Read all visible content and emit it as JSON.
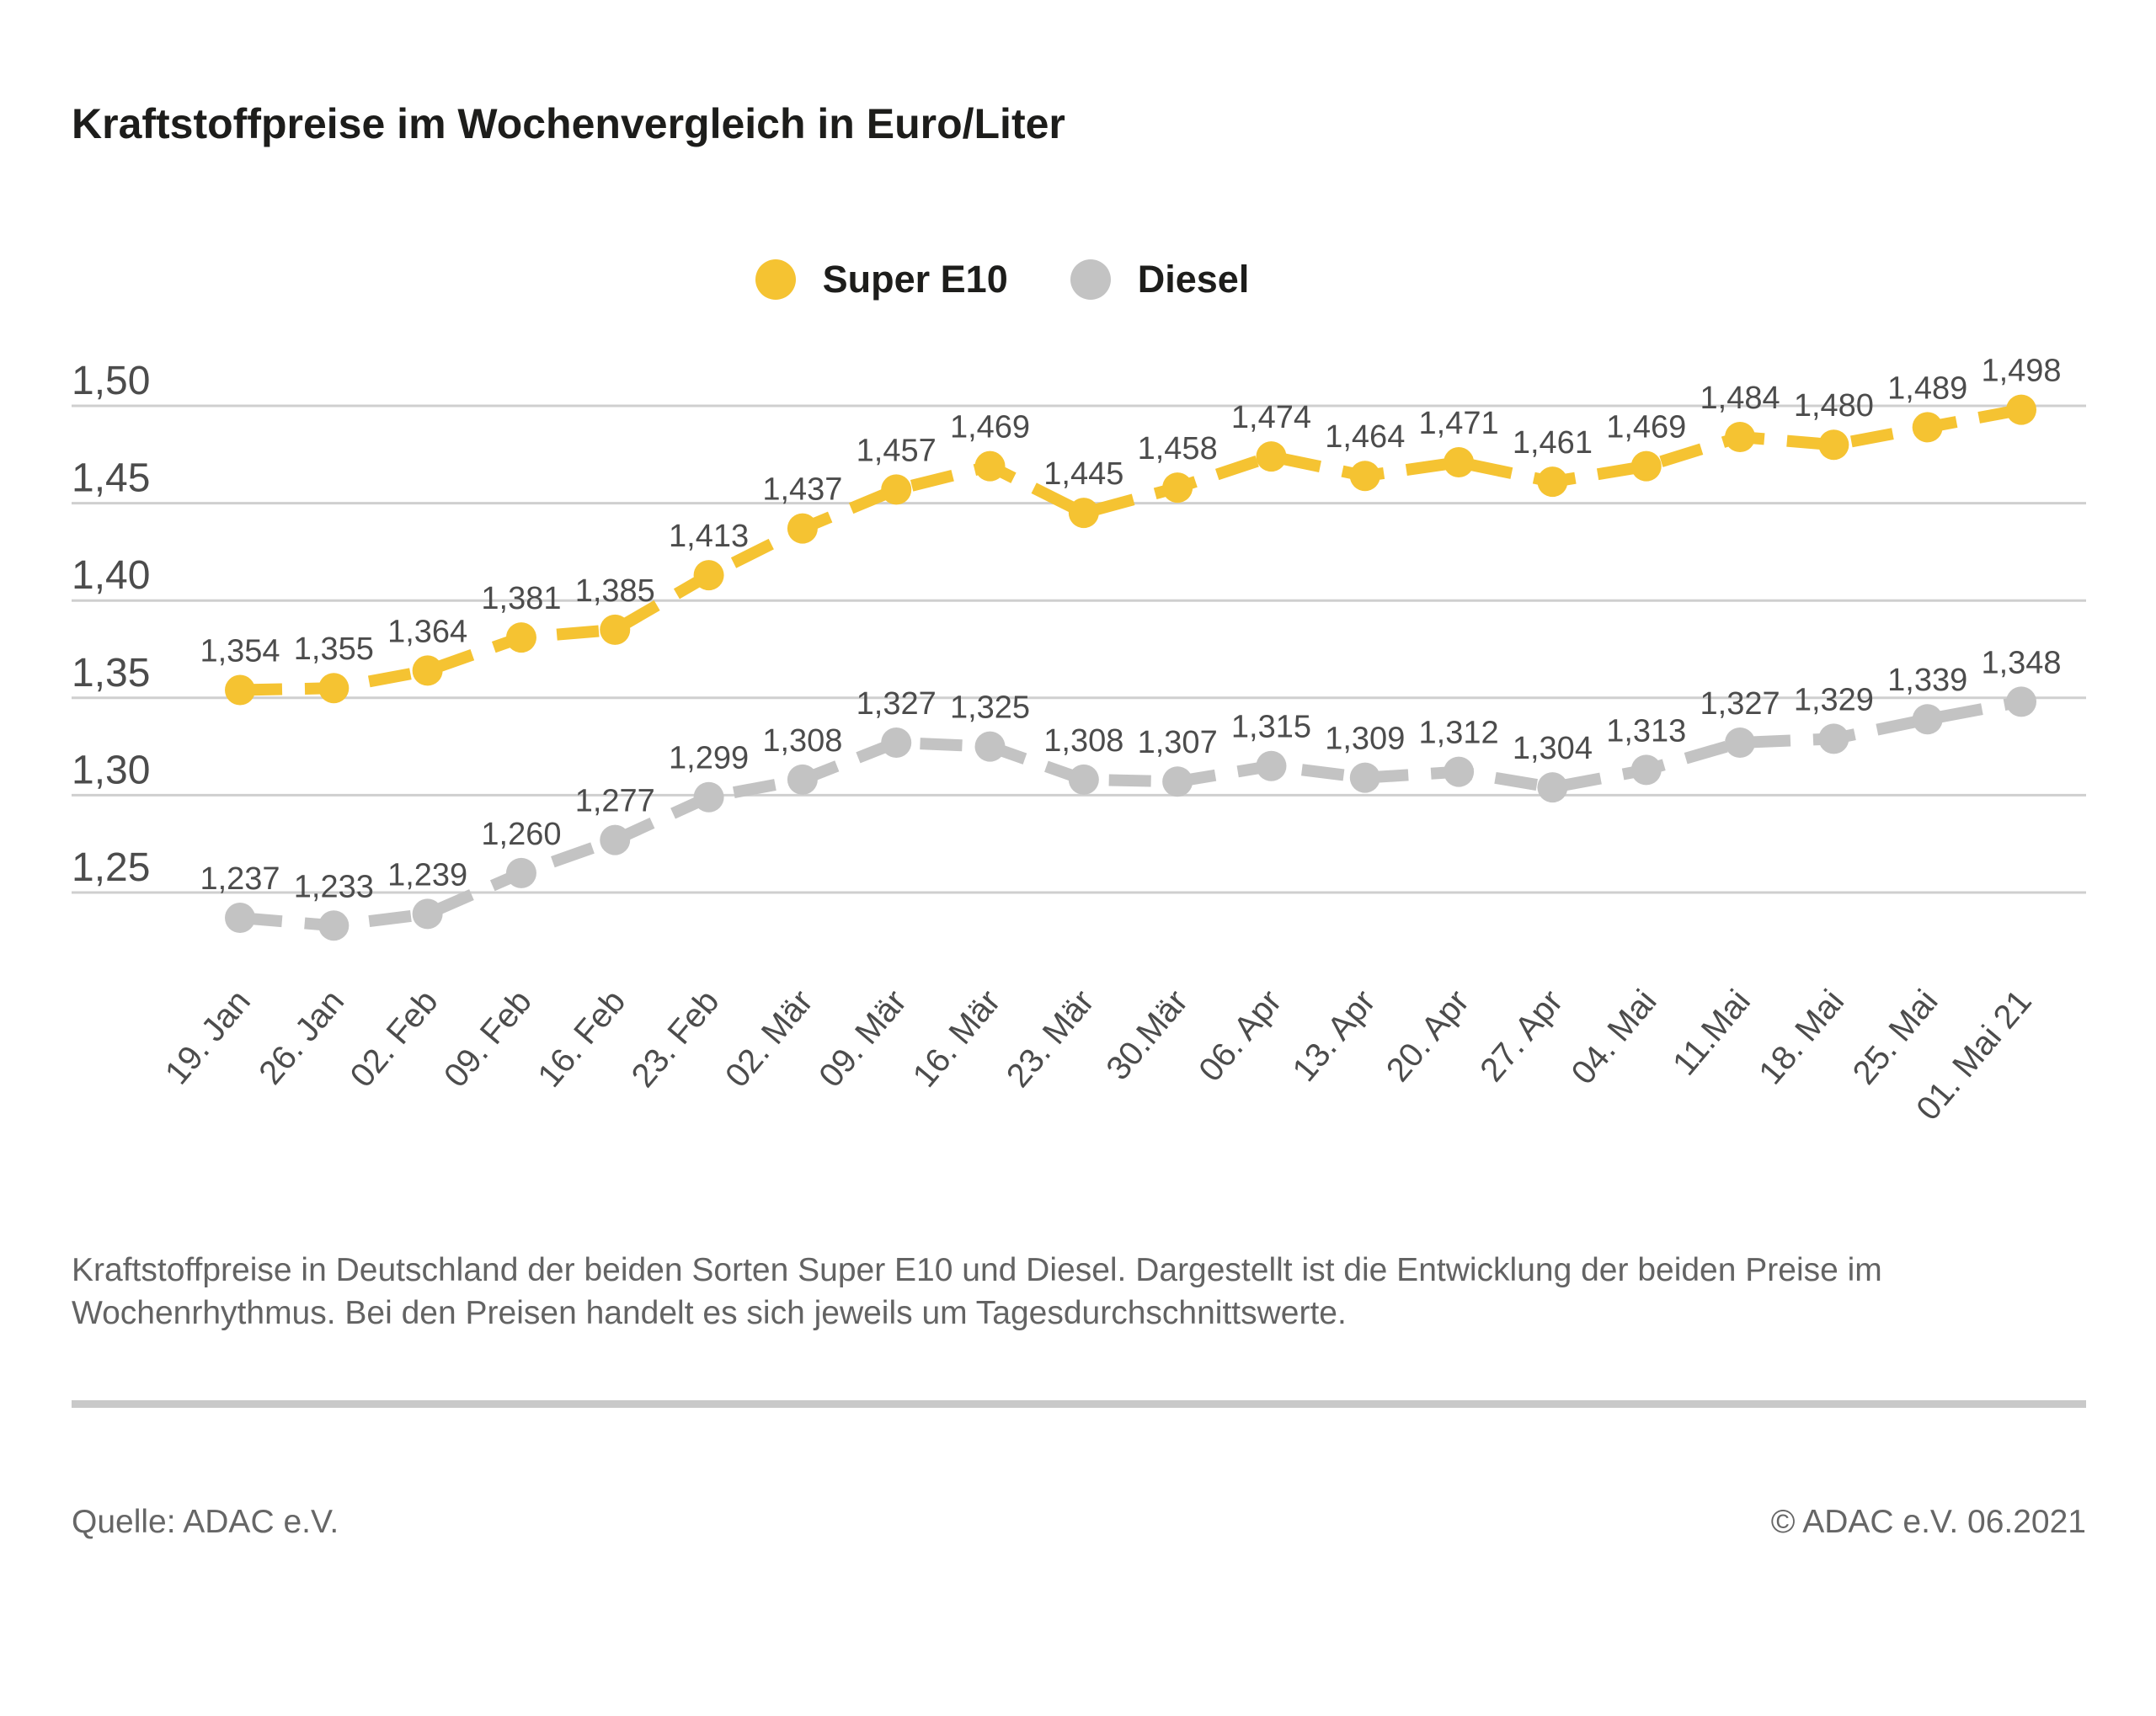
{
  "header": {
    "title": "Kraftstoffpreise im Wochenvergleich in Euro/Liter"
  },
  "legend": {
    "items": [
      {
        "label": "Super E10",
        "color": "#F5C332"
      },
      {
        "label": "Diesel",
        "color": "#C3C3C3"
      }
    ]
  },
  "chart_data": {
    "type": "line",
    "title": "Kraftstoffpreise im Wochenvergleich in Euro/Liter",
    "ylabel": "Euro/Liter",
    "xlabel": "",
    "categories": [
      "19. Jan",
      "26. Jan",
      "02. Feb",
      "09. Feb",
      "16. Feb",
      "23. Feb",
      "02. Mär",
      "09. Mär",
      "16. Mär",
      "23. Mär",
      "30.Mär",
      "06. Apr",
      "13. Apr",
      "20. Apr",
      "27. Apr",
      "04. Mai",
      "11.Mai",
      "18. Mai",
      "25. Mai",
      "01. Mai 21"
    ],
    "series": [
      {
        "name": "Super E10",
        "color": "#F5C332",
        "values": [
          1.354,
          1.355,
          1.364,
          1.381,
          1.385,
          1.413,
          1.437,
          1.457,
          1.469,
          1.445,
          1.458,
          1.474,
          1.464,
          1.471,
          1.461,
          1.469,
          1.484,
          1.48,
          1.489,
          1.498
        ]
      },
      {
        "name": "Diesel",
        "color": "#C3C3C3",
        "values": [
          1.237,
          1.233,
          1.239,
          1.26,
          1.277,
          1.299,
          1.308,
          1.327,
          1.325,
          1.308,
          1.307,
          1.315,
          1.309,
          1.312,
          1.304,
          1.313,
          1.327,
          1.329,
          1.339,
          1.348
        ]
      }
    ],
    "y_ticks": [
      1.5,
      1.45,
      1.4,
      1.35,
      1.3,
      1.25
    ],
    "ylim": [
      1.225,
      1.52
    ],
    "grid": true,
    "legend_position": "top-center",
    "value_labels": true,
    "value_label_decimals": 3,
    "tick_decimals": 2,
    "decimal_separator": ",",
    "grid_color": "#cfcfcf",
    "label_color": "#4c4c4c"
  },
  "caption": {
    "line1": "Kraftstoffpreise in Deutschland der beiden Sorten Super E10 und Diesel. Dargestellt ist die Entwicklung der beiden Preise im",
    "line2": "Wochenrhythmus. Bei den Preisen handelt es sich jeweils um Tagesdurchschnittswerte."
  },
  "footer": {
    "source": "Quelle: ADAC e.V.",
    "copyright": "© ADAC e.V. 06.2021"
  }
}
